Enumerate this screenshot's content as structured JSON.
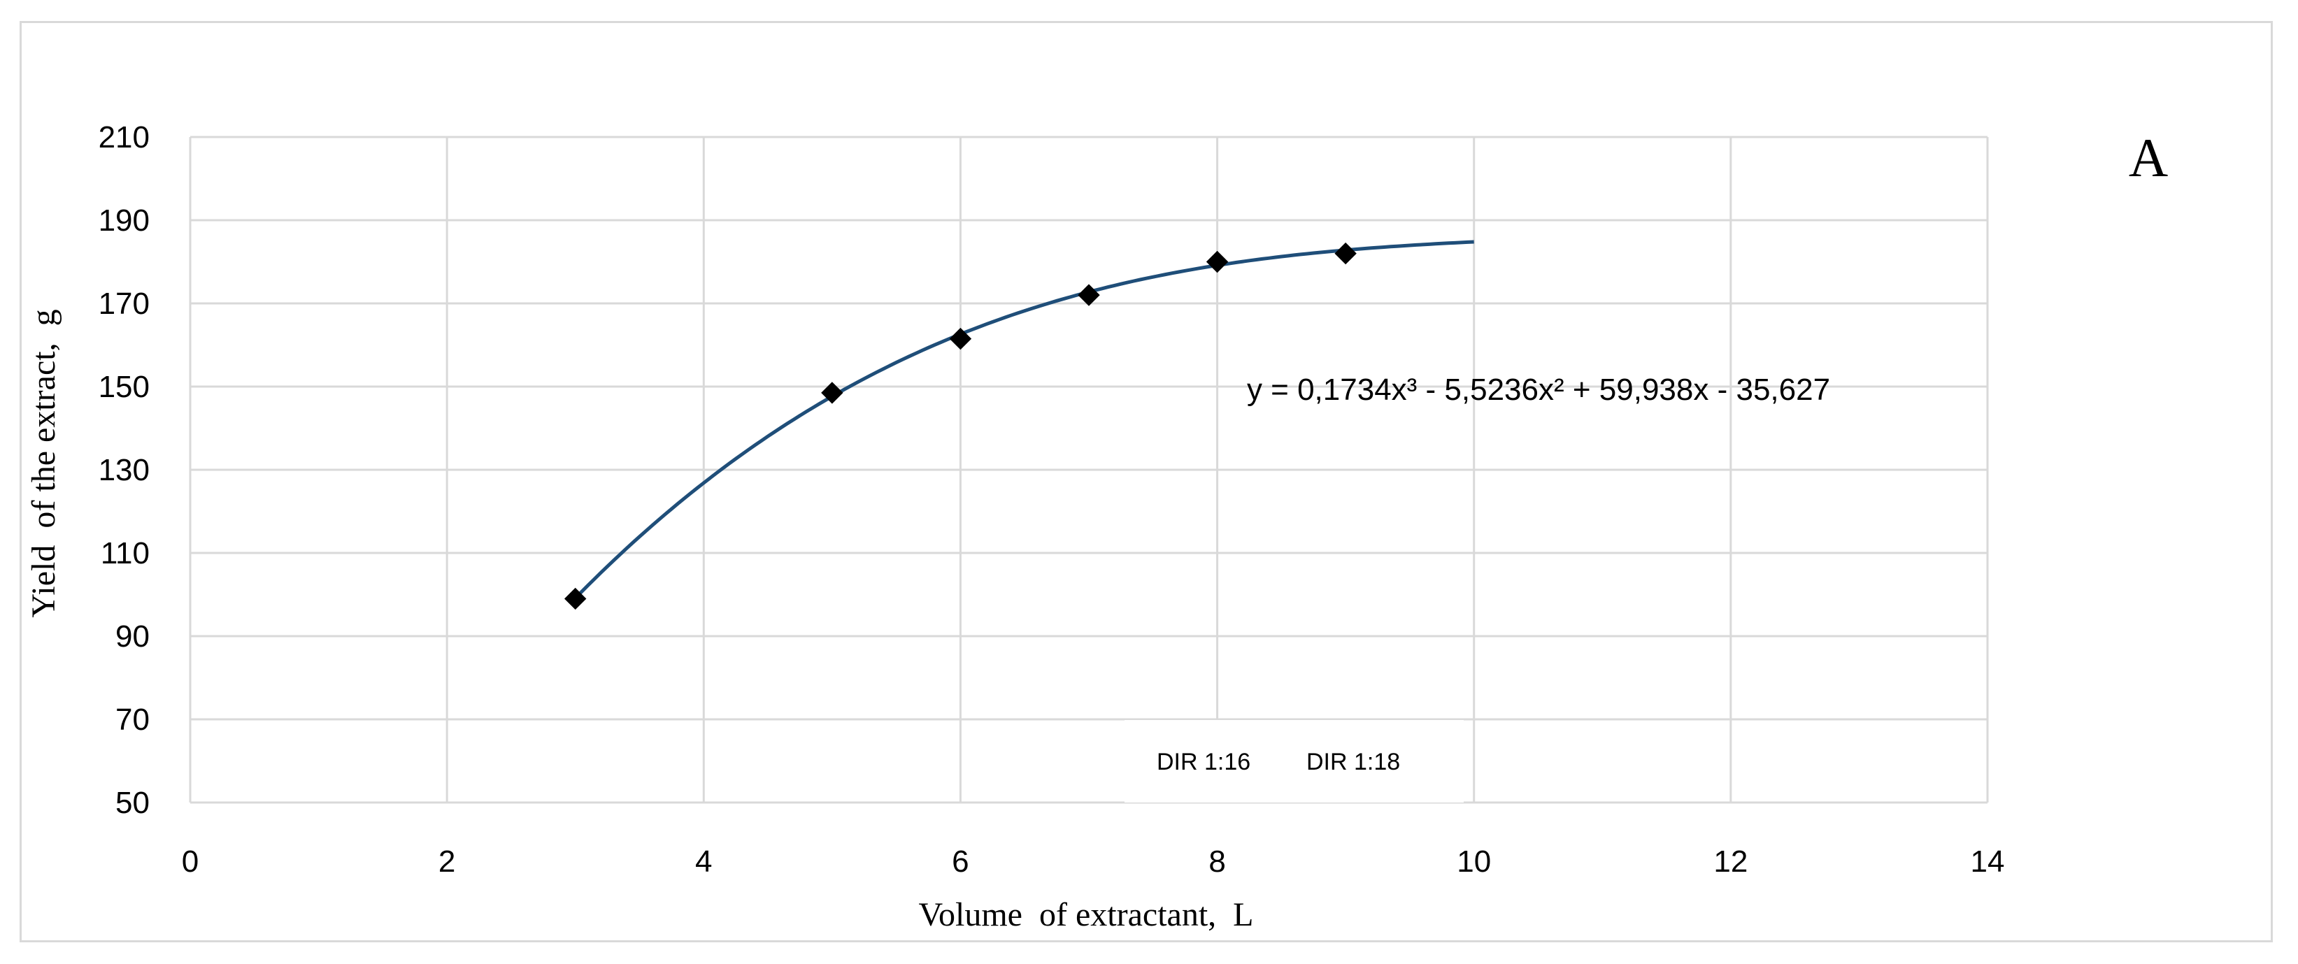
{
  "panel_label": "A",
  "chart_data": {
    "type": "scatter",
    "xlabel": "Volume  of extractant,  L",
    "ylabel": "Yield  of the extract,  g",
    "xlim": [
      0,
      14
    ],
    "ylim": [
      50,
      210
    ],
    "x_ticks": [
      0,
      2,
      4,
      6,
      8,
      10,
      12,
      14
    ],
    "y_ticks": [
      50,
      70,
      90,
      110,
      130,
      150,
      170,
      190,
      210
    ],
    "grid": true,
    "series": [
      {
        "x": [
          3,
          5,
          6,
          7,
          8,
          9
        ],
        "y": [
          99,
          148.5,
          161.5,
          172,
          180,
          182
        ],
        "marker": "diamond",
        "color": "#000000"
      }
    ],
    "trendline": {
      "type": "polynomial",
      "coefficients": [
        0.1734,
        -5.5236,
        59.938,
        -35.627
      ],
      "x_range": [
        3,
        10
      ],
      "color": "#1f4e79",
      "equation_label": "y = 0,1734x³ - 5,5236x² + 59,938x - 35,627"
    },
    "legend_labels": [
      "DIR 1:16",
      "DIR 1:18"
    ],
    "legend_position": "bottom-center"
  }
}
